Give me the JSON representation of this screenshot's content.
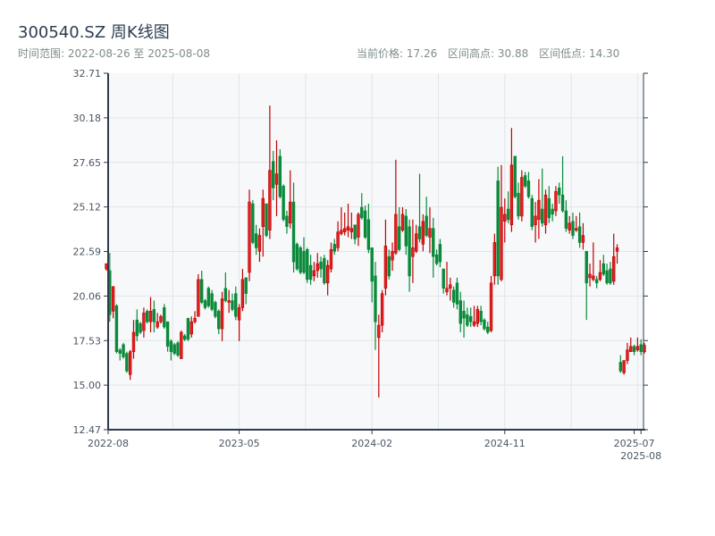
{
  "header": {
    "title": "300540.SZ 周K线图",
    "range_label": "时间范围: 2022-08-26 至 2025-08-08",
    "current_price": "当前价格: 17.26",
    "range_high": "区间高点: 30.88",
    "range_low": "区间低点: 14.30"
  },
  "colors": {
    "up": "#e02020",
    "up_border": "#c00000",
    "down": "#0a8a3a",
    "plot_bg": "#f6f8fa",
    "grid": "#e2e5ea",
    "axis": "#2f3b4c"
  },
  "chart_data": {
    "type": "candlestick",
    "title": "300540.SZ 周K线图",
    "ylim": [
      12.47,
      32.71
    ],
    "yticks": [
      "12.47",
      "15.00",
      "17.53",
      "20.06",
      "22.59",
      "25.12",
      "27.65",
      "30.18",
      "32.71"
    ],
    "xticks": [
      {
        "label": "2022-08",
        "index": 0
      },
      {
        "label": "2023-05",
        "index": 39
      },
      {
        "label": "2024-02",
        "index": 78
      },
      {
        "label": "2024-11",
        "index": 117
      },
      {
        "label": "2025-07",
        "index": 155
      },
      {
        "label": "2025-08",
        "index": 157
      }
    ],
    "ohlc_fields": [
      "open",
      "high",
      "low",
      "close"
    ],
    "candles": [
      [
        21.6,
        21.9,
        21.5,
        21.9
      ],
      [
        21.5,
        22.5,
        18.6,
        19.0
      ],
      [
        19.2,
        20.6,
        18.8,
        20.6
      ],
      [
        19.5,
        19.6,
        16.8,
        16.9
      ],
      [
        17.0,
        17.1,
        16.4,
        16.8
      ],
      [
        17.3,
        17.4,
        16.5,
        16.6
      ],
      [
        16.8,
        16.9,
        15.7,
        15.8
      ],
      [
        15.6,
        17.0,
        15.3,
        16.9
      ],
      [
        16.9,
        18.7,
        16.5,
        18.0
      ],
      [
        18.7,
        19.3,
        17.5,
        17.8
      ],
      [
        18.5,
        18.6,
        17.9,
        18.0
      ],
      [
        18.1,
        19.4,
        17.7,
        19.1
      ],
      [
        19.2,
        19.3,
        18.5,
        18.6
      ],
      [
        18.6,
        20.0,
        18.0,
        19.2
      ],
      [
        19.3,
        19.8,
        18.0,
        18.6
      ],
      [
        18.3,
        19.1,
        18.2,
        18.6
      ],
      [
        18.6,
        19.0,
        18.5,
        18.9
      ],
      [
        19.4,
        19.6,
        18.2,
        18.3
      ],
      [
        18.6,
        18.6,
        16.9,
        17.2
      ],
      [
        17.5,
        17.6,
        16.4,
        16.9
      ],
      [
        17.3,
        17.4,
        16.7,
        16.8
      ],
      [
        17.4,
        17.5,
        16.6,
        16.7
      ],
      [
        16.5,
        18.1,
        16.5,
        18.0
      ],
      [
        17.8,
        17.9,
        17.5,
        17.6
      ],
      [
        18.8,
        18.8,
        17.5,
        17.6
      ],
      [
        17.9,
        18.9,
        17.7,
        18.6
      ],
      [
        18.6,
        19.2,
        18.5,
        18.8
      ],
      [
        18.9,
        21.3,
        18.9,
        21.0
      ],
      [
        21.0,
        21.5,
        19.6,
        19.7
      ],
      [
        19.8,
        19.9,
        19.3,
        19.4
      ],
      [
        20.5,
        20.6,
        19.4,
        19.5
      ],
      [
        20.2,
        20.4,
        19.2,
        19.3
      ],
      [
        19.7,
        19.8,
        18.8,
        18.9
      ],
      [
        19.2,
        19.3,
        17.9,
        18.2
      ],
      [
        18.2,
        20.3,
        17.5,
        19.9
      ],
      [
        20.5,
        21.4,
        19.7,
        19.8
      ],
      [
        19.7,
        20.4,
        19.1,
        19.8
      ],
      [
        19.8,
        20.2,
        19.2,
        19.3
      ],
      [
        20.2,
        20.6,
        18.7,
        18.9
      ],
      [
        18.7,
        19.6,
        17.5,
        19.4
      ],
      [
        19.4,
        21.6,
        19.2,
        21.0
      ],
      [
        21.1,
        21.1,
        19.6,
        20.2
      ],
      [
        21.4,
        26.1,
        20.9,
        25.4
      ],
      [
        25.3,
        25.5,
        23.0,
        23.1
      ],
      [
        23.6,
        24.1,
        22.4,
        22.8
      ],
      [
        22.6,
        23.9,
        22.0,
        23.5
      ],
      [
        24.0,
        26.1,
        22.3,
        25.6
      ],
      [
        25.3,
        25.3,
        23.4,
        23.5
      ],
      [
        23.8,
        30.88,
        23.3,
        27.2
      ],
      [
        27.7,
        28.3,
        25.5,
        26.2
      ],
      [
        26.4,
        28.9,
        24.6,
        27.0
      ],
      [
        28.0,
        28.4,
        25.6,
        25.7
      ],
      [
        26.3,
        26.4,
        24.3,
        24.4
      ],
      [
        24.6,
        24.9,
        23.6,
        24.0
      ],
      [
        24.2,
        27.2,
        23.9,
        25.4
      ],
      [
        25.4,
        26.5,
        21.4,
        22.0
      ],
      [
        23.0,
        23.1,
        21.5,
        21.6
      ],
      [
        22.8,
        22.9,
        21.3,
        21.4
      ],
      [
        22.6,
        23.4,
        21.3,
        21.4
      ],
      [
        22.7,
        22.8,
        20.8,
        21.0
      ],
      [
        21.8,
        22.4,
        20.7,
        21.0
      ],
      [
        21.2,
        22.0,
        20.9,
        21.5
      ],
      [
        21.5,
        22.5,
        21.1,
        21.9
      ],
      [
        22.0,
        22.3,
        21.1,
        21.6
      ],
      [
        22.2,
        22.4,
        20.7,
        20.8
      ],
      [
        20.8,
        22.1,
        20.1,
        21.8
      ],
      [
        21.6,
        23.1,
        21.4,
        22.7
      ],
      [
        23.0,
        23.3,
        22.4,
        22.6
      ],
      [
        22.8,
        24.3,
        22.6,
        23.7
      ],
      [
        23.6,
        25.1,
        23.5,
        23.8
      ],
      [
        23.7,
        24.8,
        23.5,
        23.9
      ],
      [
        23.8,
        25.3,
        23.4,
        24.0
      ],
      [
        23.7,
        24.8,
        23.3,
        23.9
      ],
      [
        24.1,
        24.1,
        23.0,
        23.3
      ],
      [
        23.4,
        24.8,
        22.9,
        24.7
      ],
      [
        25.1,
        25.9,
        24.4,
        24.5
      ],
      [
        24.9,
        25.2,
        23.3,
        23.4
      ],
      [
        24.4,
        25.3,
        22.5,
        22.7
      ],
      [
        22.8,
        22.8,
        19.7,
        20.9
      ],
      [
        21.2,
        22.0,
        17.0,
        18.6
      ],
      [
        17.7,
        19.0,
        14.3,
        18.4
      ],
      [
        18.4,
        20.4,
        18.0,
        20.2
      ],
      [
        20.5,
        24.4,
        20.1,
        22.9
      ],
      [
        22.3,
        22.7,
        21.0,
        21.2
      ],
      [
        22.1,
        23.1,
        21.5,
        22.6
      ],
      [
        22.5,
        27.8,
        22.4,
        24.7
      ],
      [
        24.0,
        25.1,
        22.6,
        22.7
      ],
      [
        23.8,
        25.1,
        23.7,
        24.7
      ],
      [
        24.6,
        25.0,
        22.4,
        22.9
      ],
      [
        24.0,
        24.4,
        20.3,
        21.2
      ],
      [
        22.3,
        24.4,
        20.8,
        22.8
      ],
      [
        22.6,
        24.1,
        22.5,
        23.6
      ],
      [
        24.0,
        27.0,
        23.1,
        23.3
      ],
      [
        23.0,
        24.7,
        22.6,
        24.3
      ],
      [
        24.6,
        25.7,
        23.4,
        23.5
      ],
      [
        23.4,
        25.1,
        22.5,
        23.9
      ],
      [
        23.9,
        24.5,
        21.1,
        22.3
      ],
      [
        22.4,
        22.7,
        21.8,
        21.9
      ],
      [
        23.0,
        23.3,
        21.7,
        22.0
      ],
      [
        21.6,
        21.6,
        20.2,
        20.5
      ],
      [
        20.3,
        22.0,
        20.1,
        20.5
      ],
      [
        20.5,
        21.1,
        19.8,
        20.7
      ],
      [
        20.4,
        20.6,
        19.4,
        19.7
      ],
      [
        20.8,
        21.1,
        19.3,
        19.6
      ],
      [
        19.8,
        20.3,
        18.0,
        18.5
      ],
      [
        19.2,
        19.8,
        17.7,
        18.8
      ],
      [
        19.0,
        19.4,
        18.3,
        18.4
      ],
      [
        18.9,
        19.4,
        18.3,
        18.6
      ],
      [
        18.4,
        19.5,
        18.3,
        18.6
      ],
      [
        18.5,
        19.5,
        18.3,
        19.3
      ],
      [
        19.2,
        19.5,
        18.4,
        18.6
      ],
      [
        18.7,
        18.8,
        18.1,
        18.2
      ],
      [
        18.3,
        18.6,
        17.9,
        18.0
      ],
      [
        18.1,
        21.2,
        18.0,
        20.8
      ],
      [
        21.2,
        23.6,
        20.7,
        23.1
      ],
      [
        26.6,
        27.4,
        20.7,
        21.2
      ],
      [
        21.0,
        27.5,
        20.9,
        25.1
      ],
      [
        24.3,
        25.6,
        23.1,
        24.7
      ],
      [
        25.0,
        26.0,
        24.2,
        24.4
      ],
      [
        24.1,
        29.6,
        23.7,
        27.5
      ],
      [
        28.0,
        28.0,
        25.6,
        25.7
      ],
      [
        25.9,
        26.5,
        24.4,
        24.6
      ],
      [
        24.6,
        27.2,
        24.3,
        26.8
      ],
      [
        26.9,
        27.1,
        26.2,
        26.3
      ],
      [
        26.6,
        27.1,
        25.6,
        25.7
      ],
      [
        25.6,
        25.8,
        23.8,
        24.0
      ],
      [
        24.1,
        25.4,
        23.1,
        24.6
      ],
      [
        24.4,
        26.7,
        23.3,
        25.5
      ],
      [
        25.0,
        27.3,
        24.0,
        24.2
      ],
      [
        24.1,
        26.1,
        23.6,
        25.8
      ],
      [
        25.6,
        26.3,
        24.2,
        24.5
      ],
      [
        25.0,
        25.3,
        24.3,
        24.7
      ],
      [
        24.9,
        26.3,
        24.6,
        26.0
      ],
      [
        26.2,
        26.5,
        25.3,
        25.8
      ],
      [
        25.8,
        28.0,
        24.8,
        24.9
      ],
      [
        24.9,
        25.5,
        23.7,
        23.9
      ],
      [
        23.8,
        24.6,
        23.6,
        24.2
      ],
      [
        24.3,
        24.8,
        23.3,
        23.5
      ],
      [
        23.8,
        24.6,
        23.7,
        23.9
      ],
      [
        24.0,
        24.8,
        22.8,
        23.1
      ],
      [
        23.1,
        24.2,
        22.7,
        23.5
      ],
      [
        22.6,
        22.6,
        18.7,
        20.8
      ],
      [
        21.1,
        21.9,
        20.6,
        21.3
      ],
      [
        21.0,
        23.1,
        20.9,
        21.2
      ],
      [
        21.0,
        21.2,
        20.5,
        20.8
      ],
      [
        21.0,
        22.1,
        20.9,
        21.4
      ],
      [
        21.9,
        22.4,
        21.2,
        21.3
      ],
      [
        21.5,
        21.9,
        20.7,
        20.8
      ],
      [
        21.6,
        22.0,
        20.7,
        20.8
      ],
      [
        20.9,
        23.6,
        20.7,
        22.3
      ],
      [
        22.6,
        23.0,
        21.9,
        22.8
      ],
      [
        16.3,
        16.7,
        15.7,
        15.8
      ],
      [
        15.7,
        16.4,
        15.6,
        16.4
      ],
      [
        16.4,
        17.4,
        16.2,
        17.0
      ],
      [
        16.9,
        17.7,
        16.9,
        17.2
      ],
      [
        17.2,
        17.3,
        16.7,
        16.9
      ],
      [
        17.0,
        17.7,
        16.9,
        17.2
      ],
      [
        17.3,
        17.6,
        16.7,
        16.9
      ],
      [
        16.9,
        17.4,
        16.8,
        17.26
      ]
    ]
  }
}
